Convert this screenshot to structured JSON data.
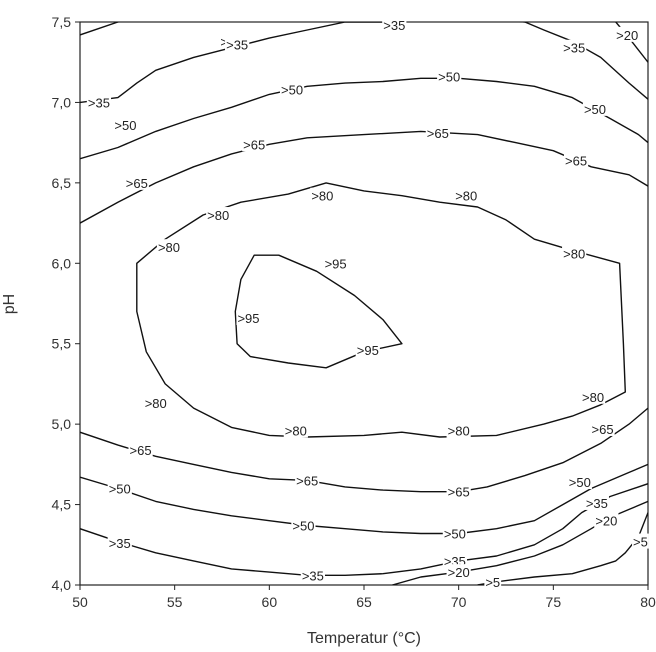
{
  "chart_data": {
    "type": "contour",
    "title": "",
    "xlabel": "Temperatur (°C)",
    "ylabel": "pH",
    "xlim": [
      50,
      80
    ],
    "ylim": [
      4.0,
      7.5
    ],
    "xticks": [
      "50",
      "55",
      "60",
      "65",
      "70",
      "75",
      "80"
    ],
    "yticks": [
      "4,0",
      "4,5",
      "5,0",
      "5,5",
      "6,0",
      "6,5",
      "7,0",
      "7,5"
    ],
    "grid": false,
    "levels": [
      {
        "name": "95",
        "closed": true,
        "points": [
          [
            58.5,
            5.9
          ],
          [
            59.2,
            6.05
          ],
          [
            60.5,
            6.05
          ],
          [
            62.5,
            5.95
          ],
          [
            64.5,
            5.8
          ],
          [
            66,
            5.65
          ],
          [
            67,
            5.5
          ],
          [
            65,
            5.45
          ],
          [
            63,
            5.35
          ],
          [
            61,
            5.38
          ],
          [
            59,
            5.42
          ],
          [
            58.3,
            5.5
          ],
          [
            58.2,
            5.7
          ]
        ],
        "labels": [
          {
            "text": ">95",
            "x": 63.5,
            "y": 6.0
          },
          {
            "text": ">95",
            "x": 58.9,
            "y": 5.66
          },
          {
            "text": ">95",
            "x": 65.2,
            "y": 5.46
          }
        ]
      },
      {
        "name": "80",
        "closed": true,
        "points": [
          [
            53,
            6.0
          ],
          [
            54.5,
            6.15
          ],
          [
            56.5,
            6.3
          ],
          [
            58.5,
            6.38
          ],
          [
            61,
            6.43
          ],
          [
            63,
            6.5
          ],
          [
            65,
            6.45
          ],
          [
            67,
            6.42
          ],
          [
            69,
            6.38
          ],
          [
            71,
            6.35
          ],
          [
            72.5,
            6.27
          ],
          [
            74,
            6.15
          ],
          [
            76,
            6.08
          ],
          [
            78.5,
            6.0
          ],
          [
            78.7,
            5.5
          ],
          [
            78.8,
            5.2
          ],
          [
            77.5,
            5.12
          ],
          [
            76,
            5.05
          ],
          [
            74.5,
            5.0
          ],
          [
            72,
            4.93
          ],
          [
            69,
            4.92
          ],
          [
            67,
            4.95
          ],
          [
            65,
            4.93
          ],
          [
            62,
            4.92
          ],
          [
            60,
            4.93
          ],
          [
            58,
            4.98
          ],
          [
            56,
            5.1
          ],
          [
            54.5,
            5.25
          ],
          [
            53.5,
            5.45
          ],
          [
            53,
            5.7
          ]
        ],
        "labels": [
          {
            "text": ">80",
            "x": 62.8,
            "y": 6.42
          },
          {
            "text": ">80",
            "x": 70.4,
            "y": 6.42
          },
          {
            "text": ">80",
            "x": 57.3,
            "y": 6.3
          },
          {
            "text": ">80",
            "x": 54.7,
            "y": 6.1
          },
          {
            "text": ">80",
            "x": 76.1,
            "y": 6.06
          },
          {
            "text": ">80",
            "x": 54.0,
            "y": 5.13
          },
          {
            "text": ">80",
            "x": 77.1,
            "y": 5.17
          },
          {
            "text": ">80",
            "x": 61.4,
            "y": 4.96
          },
          {
            "text": ">80",
            "x": 70.0,
            "y": 4.96
          }
        ]
      },
      {
        "name": "65 upper",
        "closed": false,
        "points": [
          [
            50,
            6.25
          ],
          [
            52,
            6.38
          ],
          [
            54,
            6.5
          ],
          [
            56,
            6.6
          ],
          [
            58,
            6.68
          ],
          [
            60,
            6.74
          ],
          [
            62,
            6.78
          ],
          [
            65,
            6.8
          ],
          [
            68,
            6.82
          ],
          [
            71,
            6.8
          ],
          [
            73,
            6.75
          ],
          [
            75,
            6.7
          ],
          [
            77,
            6.6
          ],
          [
            79,
            6.55
          ],
          [
            80,
            6.48
          ]
        ],
        "labels": [
          {
            "text": ">65",
            "x": 53.0,
            "y": 6.5
          },
          {
            "text": ">65",
            "x": 59.2,
            "y": 6.74
          },
          {
            "text": ">65",
            "x": 68.9,
            "y": 6.81
          },
          {
            "text": ">65",
            "x": 76.2,
            "y": 6.64
          }
        ]
      },
      {
        "name": "65 lower",
        "closed": false,
        "points": [
          [
            50,
            4.95
          ],
          [
            52,
            4.87
          ],
          [
            54,
            4.8
          ],
          [
            56,
            4.75
          ],
          [
            58,
            4.7
          ],
          [
            60,
            4.66
          ],
          [
            62,
            4.65
          ],
          [
            64,
            4.61
          ],
          [
            66,
            4.59
          ],
          [
            68,
            4.58
          ],
          [
            70,
            4.58
          ],
          [
            71.5,
            4.61
          ],
          [
            73.5,
            4.68
          ],
          [
            75.5,
            4.76
          ],
          [
            77.5,
            4.88
          ],
          [
            79,
            5.0
          ],
          [
            80,
            5.1
          ]
        ],
        "labels": [
          {
            "text": ">65",
            "x": 53.2,
            "y": 4.84
          },
          {
            "text": ">65",
            "x": 62.0,
            "y": 4.65
          },
          {
            "text": ">65",
            "x": 70.0,
            "y": 4.58
          },
          {
            "text": ">65",
            "x": 77.6,
            "y": 4.97
          }
        ]
      },
      {
        "name": "50 upper",
        "closed": false,
        "points": [
          [
            50,
            6.65
          ],
          [
            52,
            6.72
          ],
          [
            54,
            6.82
          ],
          [
            56,
            6.9
          ],
          [
            58,
            6.97
          ],
          [
            60,
            7.05
          ],
          [
            62,
            7.1
          ],
          [
            64,
            7.12
          ],
          [
            66,
            7.13
          ],
          [
            68,
            7.15
          ],
          [
            70,
            7.15
          ],
          [
            72,
            7.13
          ],
          [
            74,
            7.1
          ],
          [
            76,
            7.03
          ],
          [
            78,
            6.9
          ],
          [
            79.5,
            6.8
          ],
          [
            80,
            6.75
          ]
        ],
        "labels": [
          {
            "text": ">50",
            "x": 52.4,
            "y": 6.86
          },
          {
            "text": ">50",
            "x": 61.2,
            "y": 7.08
          },
          {
            "text": ">50",
            "x": 69.5,
            "y": 7.16
          },
          {
            "text": ">50",
            "x": 77.2,
            "y": 6.96
          }
        ]
      },
      {
        "name": "50 lower",
        "closed": false,
        "points": [
          [
            50,
            4.67
          ],
          [
            52,
            4.6
          ],
          [
            54,
            4.52
          ],
          [
            56,
            4.47
          ],
          [
            58,
            4.43
          ],
          [
            60,
            4.4
          ],
          [
            62,
            4.37
          ],
          [
            64,
            4.35
          ],
          [
            66,
            4.33
          ],
          [
            68,
            4.32
          ],
          [
            70,
            4.32
          ],
          [
            72,
            4.35
          ],
          [
            74,
            4.4
          ],
          [
            75.5,
            4.5
          ],
          [
            77,
            4.6
          ],
          [
            79,
            4.7
          ],
          [
            80,
            4.75
          ]
        ],
        "labels": [
          {
            "text": ">50",
            "x": 52.1,
            "y": 4.6
          },
          {
            "text": ">50",
            "x": 61.8,
            "y": 4.37
          },
          {
            "text": ">50",
            "x": 69.8,
            "y": 4.32
          },
          {
            "text": ">50",
            "x": 76.4,
            "y": 4.64
          }
        ]
      },
      {
        "name": "35 upper",
        "closed": false,
        "points": [
          [
            50,
            7.42
          ],
          [
            52,
            7.5
          ],
          [
            54,
            7.57
          ],
          [
            56,
            7.65
          ],
          [
            58,
            7.75
          ],
          [
            60,
            7.85
          ],
          [
            62,
            7.95
          ]
        ],
        "labels": [
          {
            "text": ">35",
            "x": 58.0,
            "y": 7.38
          }
        ]
      },
      {
        "name": "35 upper-left",
        "closed": false,
        "points": [
          [
            50,
            7.0
          ],
          [
            52,
            7.03
          ],
          [
            53,
            7.12
          ],
          [
            54,
            7.2
          ],
          [
            56,
            7.28
          ],
          [
            58,
            7.34
          ],
          [
            60,
            7.4
          ],
          [
            62,
            7.45
          ],
          [
            64,
            7.5
          ],
          [
            66,
            7.5
          ],
          [
            68,
            7.52
          ],
          [
            70,
            7.52
          ],
          [
            72,
            7.52
          ],
          [
            73.5,
            7.5
          ],
          [
            74.5,
            7.45
          ],
          [
            76,
            7.38
          ],
          [
            77.5,
            7.28
          ],
          [
            79,
            7.12
          ],
          [
            80,
            7.02
          ]
        ],
        "labels": [
          {
            "text": ">35",
            "x": 51.0,
            "y": 7.0
          },
          {
            "text": ">35",
            "x": 58.3,
            "y": 7.36
          },
          {
            "text": ">35",
            "x": 66.6,
            "y": 7.48
          },
          {
            "text": ">35",
            "x": 76.1,
            "y": 7.34
          }
        ]
      },
      {
        "name": "35 lower",
        "closed": false,
        "points": [
          [
            50,
            4.35
          ],
          [
            52,
            4.27
          ],
          [
            54,
            4.2
          ],
          [
            56,
            4.15
          ],
          [
            58,
            4.1
          ],
          [
            60,
            4.08
          ],
          [
            62,
            4.06
          ],
          [
            64,
            4.06
          ],
          [
            66,
            4.07
          ],
          [
            68,
            4.1
          ],
          [
            70,
            4.15
          ],
          [
            72,
            4.18
          ],
          [
            74,
            4.25
          ],
          [
            75.5,
            4.35
          ],
          [
            76.5,
            4.45
          ],
          [
            78,
            4.55
          ],
          [
            80,
            4.63
          ]
        ],
        "labels": [
          {
            "text": ">35",
            "x": 52.1,
            "y": 4.26
          },
          {
            "text": ">35",
            "x": 62.3,
            "y": 4.06
          },
          {
            "text": ">35",
            "x": 69.8,
            "y": 4.15
          },
          {
            "text": ">35",
            "x": 77.3,
            "y": 4.51
          }
        ]
      },
      {
        "name": "20 upper",
        "closed": false,
        "points": [
          [
            78.3,
            7.5
          ],
          [
            79,
            7.4
          ],
          [
            80,
            7.25
          ]
        ],
        "labels": [
          {
            "text": ">20",
            "x": 78.9,
            "y": 7.42
          }
        ]
      },
      {
        "name": "20 lower",
        "closed": false,
        "points": [
          [
            66.5,
            4.0
          ],
          [
            68,
            4.05
          ],
          [
            70,
            4.08
          ],
          [
            72,
            4.12
          ],
          [
            74,
            4.18
          ],
          [
            75.5,
            4.25
          ],
          [
            77,
            4.35
          ],
          [
            78,
            4.42
          ],
          [
            79,
            4.47
          ],
          [
            80,
            4.52
          ]
        ],
        "labels": [
          {
            "text": ">20",
            "x": 70.0,
            "y": 4.08
          },
          {
            "text": ">20",
            "x": 77.8,
            "y": 4.4
          }
        ]
      },
      {
        "name": "5",
        "closed": false,
        "points": [
          [
            71,
            4.0
          ],
          [
            72,
            4.02
          ],
          [
            74,
            4.05
          ],
          [
            76,
            4.07
          ],
          [
            77.5,
            4.12
          ],
          [
            78.3,
            4.15
          ],
          [
            78.8,
            4.2
          ],
          [
            79.5,
            4.3
          ],
          [
            80,
            4.45
          ]
        ],
        "labels": [
          {
            "text": ">5",
            "x": 71.8,
            "y": 4.02
          },
          {
            "text": ">5",
            "x": 79.6,
            "y": 4.27
          }
        ]
      }
    ]
  }
}
